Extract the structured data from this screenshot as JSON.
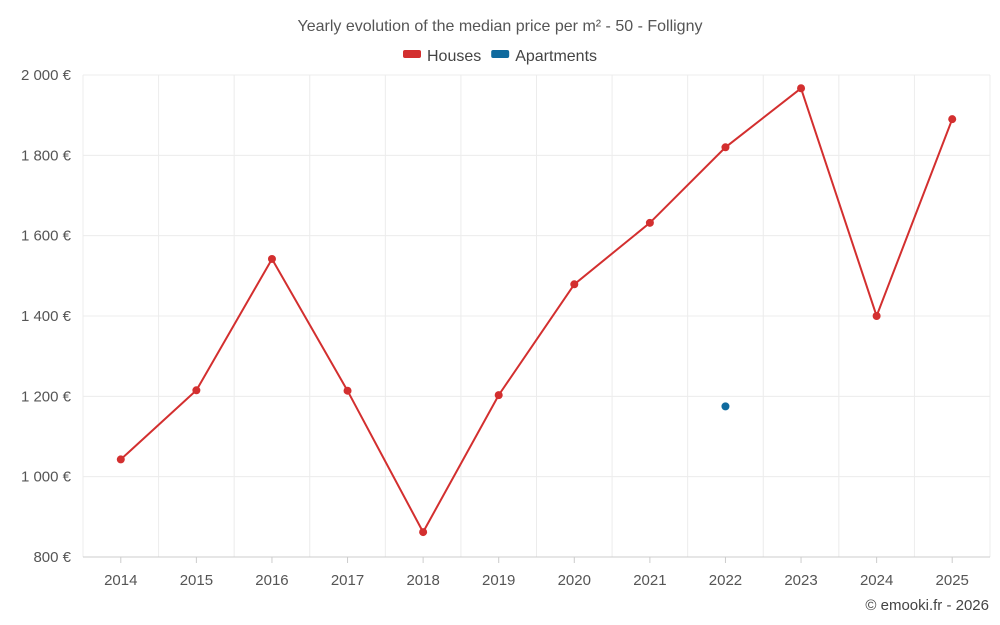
{
  "chart_data": {
    "type": "line",
    "title": "Yearly evolution of the median price per m² - 50 - Folligny",
    "x": [
      "2014",
      "2015",
      "2016",
      "2017",
      "2018",
      "2019",
      "2020",
      "2021",
      "2022",
      "2023",
      "2024",
      "2025"
    ],
    "ylim": [
      800,
      2000
    ],
    "yticks": [
      800,
      1000,
      1200,
      1400,
      1600,
      1800,
      2000
    ],
    "ytick_labels": [
      "800 €",
      "1 000 €",
      "1 200 €",
      "1 400 €",
      "1 600 €",
      "1 800 €",
      "2 000 €"
    ],
    "grid": true,
    "legend_position": "top-center",
    "series": [
      {
        "name": "Houses",
        "color": "#d32f2f",
        "values": [
          1043,
          1215,
          1542,
          1214,
          862,
          1203,
          1479,
          1632,
          1820,
          1967,
          1400,
          1890
        ]
      },
      {
        "name": "Apartments",
        "color": "#0f6a9e",
        "values": [
          null,
          null,
          null,
          null,
          null,
          null,
          null,
          null,
          1175,
          null,
          null,
          null
        ]
      }
    ]
  },
  "credit": "© emooki.fr - 2026"
}
